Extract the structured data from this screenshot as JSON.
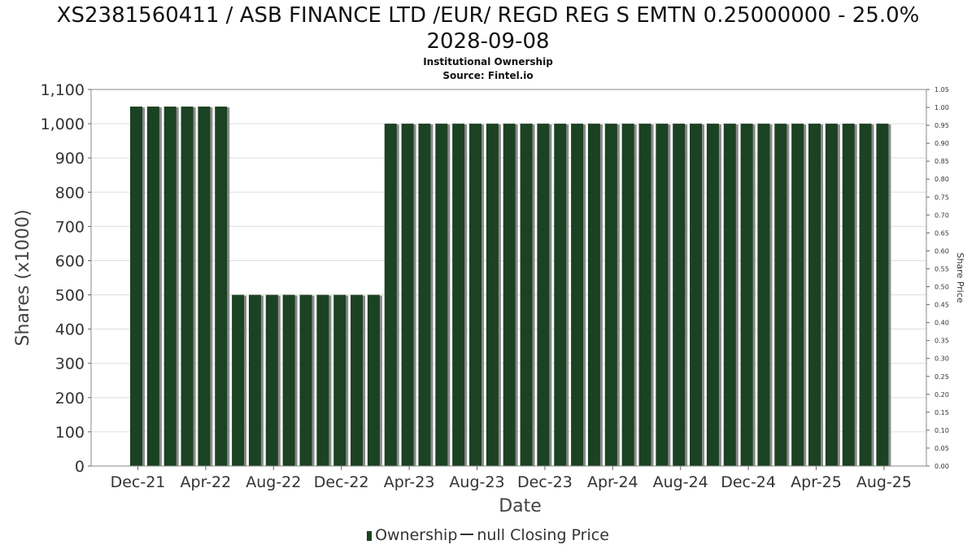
{
  "title_line1": "XS2381560411 / ASB FINANCE LTD /EUR/ REGD REG S EMTN 0.25000000 - 25.0%",
  "title_line2": "2028-09-08",
  "subtitle_line1": "Institutional Ownership",
  "subtitle_line2": "Source: Fintel.io",
  "legend": {
    "ownership": "Ownership",
    "price": "null Closing Price"
  },
  "colors": {
    "bar": "#1b4222",
    "bar_shadow": "#8a8a8a",
    "grid": "#dddddd",
    "frame": "#888888"
  },
  "chart_data": {
    "type": "bar",
    "xlabel": "Date",
    "ylabel": "Shares (x1000)",
    "y2label": "Share Price",
    "ylim": [
      0,
      1100
    ],
    "y2lim": [
      0,
      1.05
    ],
    "yticks": [
      "0",
      "100",
      "200",
      "300",
      "400",
      "500",
      "600",
      "700",
      "800",
      "900",
      "1,000",
      "1,100"
    ],
    "y2ticks": [
      "0.00",
      "0.05",
      "0.10",
      "0.15",
      "0.20",
      "0.25",
      "0.30",
      "0.35",
      "0.40",
      "0.45",
      "0.50",
      "0.55",
      "0.60",
      "0.65",
      "0.70",
      "0.75",
      "0.80",
      "0.85",
      "0.90",
      "0.95",
      "1.00",
      "1.05"
    ],
    "xticks": [
      "Dec-21",
      "Apr-22",
      "Aug-22",
      "Dec-22",
      "Apr-23",
      "Aug-23",
      "Dec-23",
      "Apr-24",
      "Aug-24",
      "Dec-24",
      "Apr-25",
      "Aug-25"
    ],
    "grid": true,
    "legend_position": "bottom",
    "series": [
      {
        "name": "Ownership",
        "values": [
          1050,
          1050,
          1050,
          1050,
          1050,
          1050,
          500,
          500,
          500,
          500,
          500,
          500,
          500,
          500,
          500,
          1000,
          1000,
          1000,
          1000,
          1000,
          1000,
          1000,
          1000,
          1000,
          1000,
          1000,
          1000,
          1000,
          1000,
          1000,
          1000,
          1000,
          1000,
          1000,
          1000,
          1000,
          1000,
          1000,
          1000,
          1000,
          1000,
          1000,
          1000,
          1000,
          1000
        ]
      }
    ]
  }
}
